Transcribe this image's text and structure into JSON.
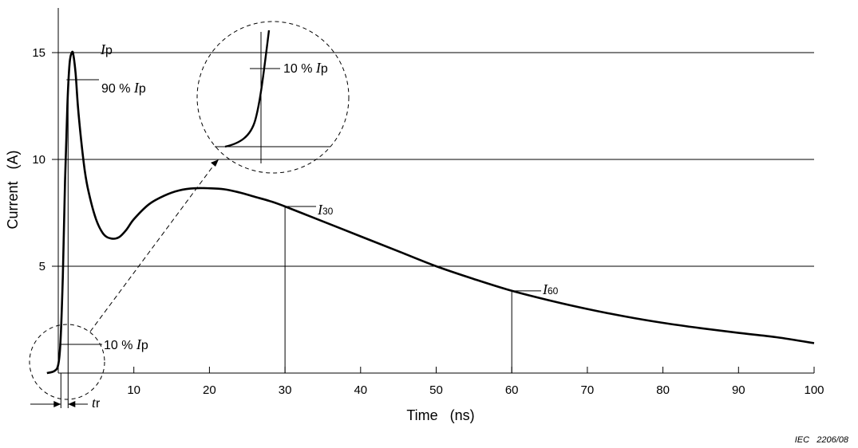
{
  "chart_data": {
    "type": "line",
    "xlabel": "Time   (ns)",
    "ylabel": "Current   (A)",
    "xlim": [
      0,
      100
    ],
    "ylim": [
      0,
      16
    ],
    "x_ticks": [
      "10",
      "20",
      "30",
      "40",
      "50",
      "60",
      "70",
      "80",
      "90",
      "100"
    ],
    "y_ticks": [
      "5",
      "10",
      "15"
    ],
    "grid_y": [
      5,
      10,
      15
    ],
    "series": [
      {
        "x": [
          -1.5,
          -0.5,
          0,
          0.3,
          0.6,
          0.9,
          1.2,
          1.5,
          1.8,
          2.0,
          2.3,
          2.6,
          3.0,
          3.5,
          4.0,
          5.0,
          6.0,
          7.0,
          8.0,
          9.0,
          10.0,
          12.0,
          14.0,
          16.0,
          18.0,
          20.0,
          22.0,
          24.0,
          26.0,
          28.0,
          30.0,
          35.0,
          40.0,
          45.0,
          50.0,
          55.0,
          60.0,
          65.0,
          70.0,
          75.0,
          80.0,
          85.0,
          90.0,
          95.0,
          100.0
        ],
        "y": [
          0,
          0.1,
          0.4,
          1.5,
          4.5,
          9.0,
          12.5,
          14.5,
          15.0,
          14.9,
          14.0,
          12.5,
          11.0,
          9.5,
          8.5,
          7.2,
          6.5,
          6.3,
          6.35,
          6.7,
          7.2,
          7.9,
          8.3,
          8.55,
          8.65,
          8.65,
          8.6,
          8.45,
          8.25,
          8.05,
          7.8,
          7.1,
          6.4,
          5.7,
          5.0,
          4.4,
          3.85,
          3.4,
          3.0,
          2.65,
          2.35,
          2.1,
          1.88,
          1.68,
          1.4
        ]
      }
    ],
    "annotations": {
      "ip": "I",
      "ip_sub": "p",
      "p90_prefix": "90 % ",
      "p10_prefix": "10 % ",
      "i30": "I",
      "i30_sub": "30",
      "i60": "I",
      "i60_sub": "60",
      "tr": "t",
      "tr_sub": "r"
    },
    "figure_id": "IEC   2206/08"
  }
}
